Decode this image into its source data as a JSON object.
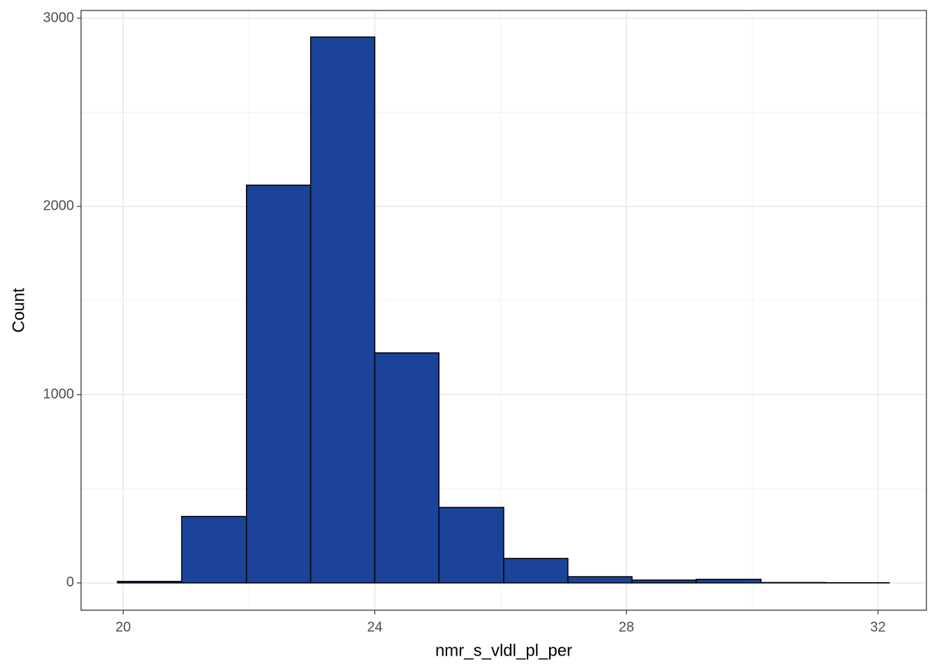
{
  "chart_data": {
    "type": "histogram",
    "x_label": "nmr_s_vldl_pl_per",
    "y_label": "Count",
    "bins": [
      19.91,
      20.93,
      21.96,
      22.98,
      24.0,
      25.02,
      26.05,
      27.07,
      28.09,
      29.11,
      30.14,
      31.16,
      32.18
    ],
    "values": [
      8,
      353,
      2113,
      2900,
      1222,
      401,
      130,
      33,
      15,
      19,
      2,
      1
    ],
    "color": "#1a4399",
    "edge_color": "#000000",
    "xlim": [
      19.33,
      32.77
    ],
    "xticks": [
      20,
      24,
      28,
      32
    ],
    "minor_xticks": [
      22,
      26,
      30
    ],
    "ylim": [
      -145,
      3041
    ],
    "yticks": [
      0,
      1000,
      2000,
      3000
    ],
    "minor_yticks": [
      500,
      1500,
      2500
    ],
    "grid": true
  }
}
